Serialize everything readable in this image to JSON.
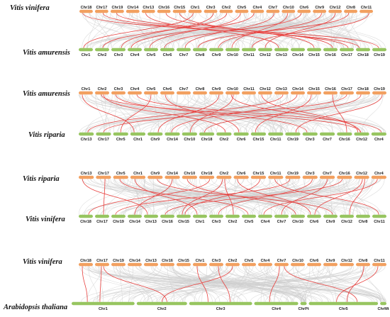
{
  "colors": {
    "top_bar": "#f2a060",
    "bottom_bar": "#97c560",
    "background_link": "#cfcfcf",
    "highlight_link": "#e8413f"
  },
  "panels": [
    {
      "top_species": "Vitis vinifera",
      "bottom_species": "Vitis amurensis",
      "top_chrs": [
        "Chr18",
        "Chr17",
        "Chr19",
        "Chr14",
        "Chr13",
        "Chr16",
        "Chr15",
        "Chr1",
        "Chr3",
        "Chr2",
        "Chr5",
        "Chr4",
        "Chr7",
        "Chr10",
        "Chr6",
        "Chr9",
        "Chr12",
        "Chr8",
        "Chr11"
      ],
      "bottom_chrs": [
        "Chr1",
        "Chr2",
        "Chr3",
        "Chr4",
        "Chr5",
        "Chr6",
        "Chr7",
        "Chr8",
        "Chr9",
        "Chr10",
        "Chr11",
        "Chr12",
        "Chr13",
        "Chr14",
        "Chr15",
        "Chr16",
        "Chr17",
        "Chr18",
        "Chr19"
      ],
      "links": [
        [
          0,
          17
        ],
        [
          1,
          16
        ],
        [
          2,
          18
        ],
        [
          4,
          12
        ],
        [
          5,
          15
        ],
        [
          6,
          14
        ],
        [
          7,
          0
        ],
        [
          8,
          2
        ],
        [
          9,
          1
        ],
        [
          10,
          4
        ],
        [
          11,
          3
        ],
        [
          12,
          6
        ],
        [
          13,
          9
        ],
        [
          14,
          5
        ],
        [
          15,
          8
        ],
        [
          16,
          11
        ],
        [
          17,
          7
        ],
        [
          18,
          10
        ]
      ]
    },
    {
      "top_species": "Vitis amurensis",
      "bottom_species": "Vitis riparia",
      "top_chrs": [
        "Chr1",
        "Chr2",
        "Chr3",
        "Chr4",
        "Chr5",
        "Chr6",
        "Chr7",
        "Chr8",
        "Chr9",
        "Chr10",
        "Chr11",
        "Chr12",
        "Chr13",
        "Chr14",
        "Chr15",
        "Chr16",
        "Chr17",
        "Chr18",
        "Chr19"
      ],
      "bottom_chrs": [
        "Chr13",
        "Chr17",
        "Chr5",
        "Chr1",
        "Chr9",
        "Chr14",
        "Chr10",
        "Chr18",
        "Chr2",
        "Chr6",
        "Chr15",
        "Chr11",
        "Chr19",
        "Chr3",
        "Chr7",
        "Chr16",
        "Chr12",
        "Chr4"
      ],
      "links": [
        [
          0,
          3
        ],
        [
          1,
          8
        ],
        [
          1,
          16
        ],
        [
          2,
          13
        ],
        [
          3,
          17
        ],
        [
          4,
          2
        ],
        [
          5,
          9
        ],
        [
          8,
          4
        ],
        [
          9,
          6
        ],
        [
          9,
          16
        ],
        [
          11,
          16
        ],
        [
          12,
          0
        ],
        [
          13,
          5
        ],
        [
          14,
          10
        ],
        [
          15,
          15
        ],
        [
          16,
          1
        ],
        [
          17,
          7
        ],
        [
          18,
          12
        ]
      ]
    },
    {
      "top_species": "Vitis riparia",
      "bottom_species": "Vitis vinifera",
      "top_chrs": [
        "Chr13",
        "Chr17",
        "Chr5",
        "Chr1",
        "Chr9",
        "Chr14",
        "Chr10",
        "Chr18",
        "Chr2",
        "Chr6",
        "Chr15",
        "Chr11",
        "Chr19",
        "Chr3",
        "Chr7",
        "Chr16",
        "Chr12",
        "Chr4"
      ],
      "bottom_chrs": [
        "Chr18",
        "Chr17",
        "Chr19",
        "Chr14",
        "Chr13",
        "Chr16",
        "Chr15",
        "Chr1",
        "Chr3",
        "Chr2",
        "Chr5",
        "Chr4",
        "Chr7",
        "Chr10",
        "Chr6",
        "Chr9",
        "Chr12",
        "Chr8",
        "Chr11"
      ],
      "links": [
        [
          0,
          4
        ],
        [
          1,
          1
        ],
        [
          2,
          10
        ],
        [
          3,
          7
        ],
        [
          4,
          15
        ],
        [
          5,
          3
        ],
        [
          6,
          13
        ],
        [
          7,
          0
        ],
        [
          8,
          9
        ],
        [
          8,
          6
        ],
        [
          9,
          14
        ],
        [
          10,
          6
        ],
        [
          11,
          18
        ],
        [
          12,
          2
        ],
        [
          13,
          8
        ],
        [
          14,
          12
        ],
        [
          15,
          5
        ],
        [
          16,
          16
        ],
        [
          16,
          14
        ],
        [
          17,
          11
        ]
      ]
    },
    {
      "top_species": "Vitis vinifera",
      "bottom_species": "Arabidopsis thaliana",
      "top_chrs": [
        "Chr18",
        "Chr17",
        "Chr19",
        "Chr14",
        "Chr13",
        "Chr16",
        "Chr15",
        "Chr1",
        "Chr3",
        "Chr2",
        "Chr5",
        "Chr4",
        "Chr7",
        "Chr10",
        "Chr6",
        "Chr9",
        "Chr12",
        "Chr8",
        "Chr11"
      ],
      "bottom_chrs": [
        "Chr1",
        "Chr2",
        "Chr3",
        "Chr4",
        "ChrPt",
        "Chr5",
        "ChrMt"
      ],
      "links": [
        [
          0,
          0
        ],
        [
          1,
          1
        ],
        [
          1,
          0
        ],
        [
          7,
          2
        ],
        [
          8,
          2
        ],
        [
          9,
          1
        ],
        [
          12,
          3
        ],
        [
          12,
          5
        ],
        [
          17,
          5
        ],
        [
          18,
          5
        ]
      ]
    }
  ]
}
